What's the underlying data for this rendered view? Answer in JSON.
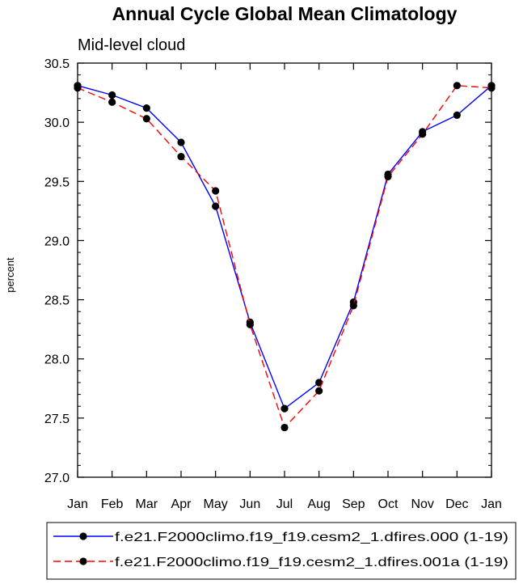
{
  "chart_data": {
    "type": "line",
    "title": "Annual Cycle Global Mean Climatology",
    "subtitle": "Mid-level cloud",
    "xlabel": "",
    "ylabel": "percent",
    "categories": [
      "Jan",
      "Feb",
      "Mar",
      "Apr",
      "May",
      "Jun",
      "Jul",
      "Aug",
      "Sep",
      "Oct",
      "Nov",
      "Dec",
      "Jan"
    ],
    "ylim": [
      27.0,
      30.5
    ],
    "yticks": [
      "27.0",
      "27.5",
      "28.0",
      "28.5",
      "29.0",
      "29.5",
      "30.0",
      "30.5"
    ],
    "series": [
      {
        "name": "f.e21.F2000climo.f19_f19.cesm2_1.dfires.000 (1-19)",
        "color": "#0000ff",
        "line_style": "solid",
        "values": [
          30.31,
          30.23,
          30.12,
          29.83,
          29.29,
          28.31,
          27.58,
          27.8,
          28.48,
          29.56,
          29.92,
          30.06,
          30.31
        ]
      },
      {
        "name": "f.e21.F2000climo.f19_f19.cesm2_1.dfires.001a (1-19)",
        "color": "#ff0000",
        "line_style": "dashed",
        "values": [
          30.29,
          30.17,
          30.03,
          29.71,
          29.42,
          28.29,
          27.42,
          27.73,
          28.45,
          29.54,
          29.9,
          30.31,
          30.29
        ]
      }
    ],
    "legend_position": "bottom"
  }
}
